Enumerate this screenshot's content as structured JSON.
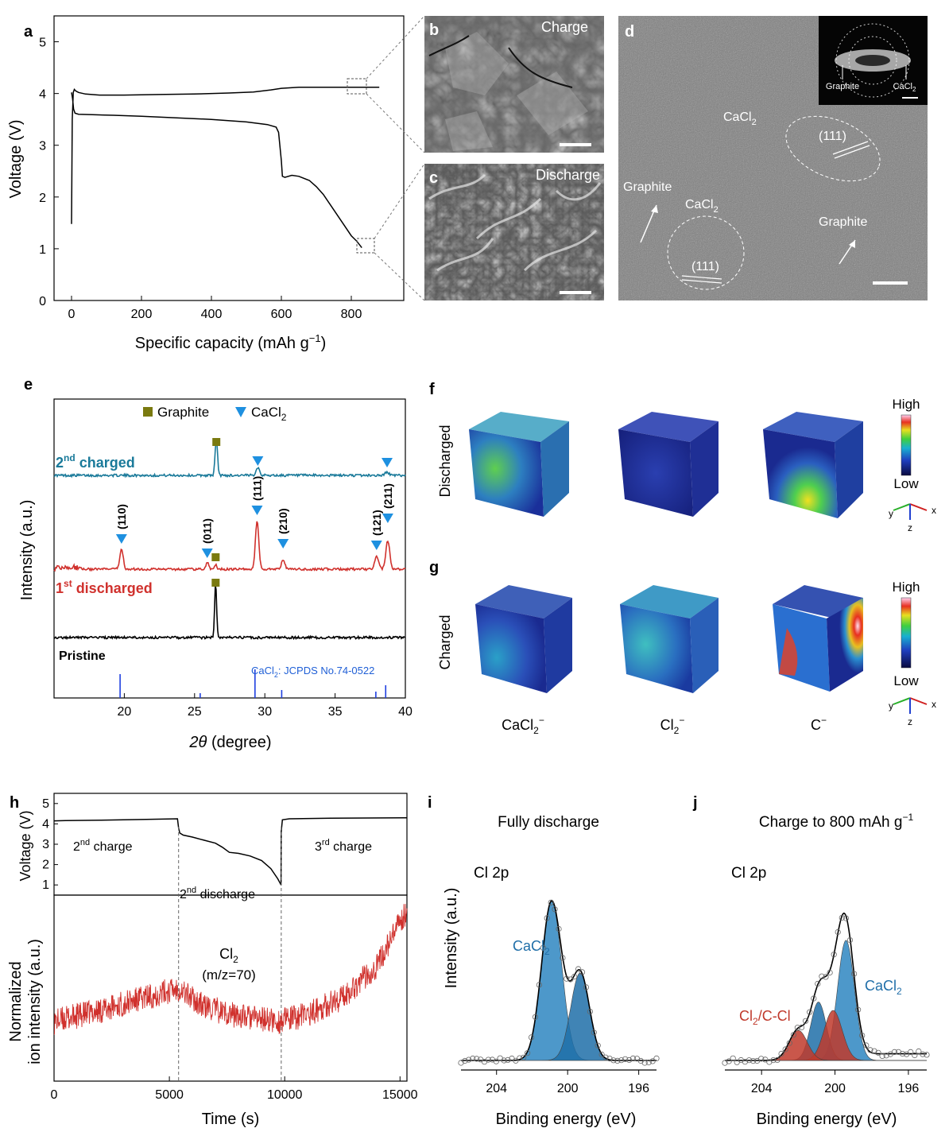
{
  "panel_labels": {
    "a": "a",
    "b": "b",
    "c": "c",
    "d": "d",
    "e": "e",
    "f": "f",
    "g": "g",
    "h": "h",
    "i": "i",
    "j": "j"
  },
  "colors": {
    "black": "#000000",
    "teal": "#1a7a9a",
    "red": "#d0312d",
    "blue": "#1f5fd6",
    "olive": "#7a7a10",
    "peakBlue": "#1e90e0",
    "xpsBlue": "#2e86c1",
    "xpsDark": "#1f6ea8",
    "xpsRed": "#c0392b"
  },
  "images": {
    "b_label": "Charge",
    "c_label": "Discharge",
    "d": {
      "cacl2_top": "CaCl",
      "cacl2_sub": "2",
      "hkl1": "(111)",
      "graphite_left": "Graphite",
      "cacl2_mid": "CaCl",
      "cacl2_mid_sub": "2",
      "hkl2": "(111)",
      "graphite_right": "Graphite",
      "saed_graphite": "Graphite",
      "saed_cacl2": "CaCl",
      "saed_cacl2_sub": "2"
    }
  },
  "tof": {
    "rows": [
      "Discharged",
      "Charged"
    ],
    "columns": [
      {
        "base": "CaCl",
        "sub": "2",
        "sup": "−"
      },
      {
        "base": "Cl",
        "sub": "2",
        "sup": "−"
      },
      {
        "base": "C",
        "sub": "",
        "sup": "−"
      }
    ],
    "scale_high": "High",
    "scale_low": "Low",
    "axes": {
      "x": "x",
      "y": "y",
      "z": "z"
    }
  },
  "chart_data": [
    {
      "id": "a",
      "type": "line",
      "xlabel_base": "Specific capacity (mAh g",
      "xlabel_sup": "−1",
      "xlabel_end": ")",
      "ylabel": "Voltage (V)",
      "xlim": [
        -50,
        950
      ],
      "ylim": [
        0,
        5.5
      ],
      "xticks": [
        "0",
        "200",
        "400",
        "600",
        "800"
      ],
      "xtick_vals": [
        0,
        200,
        400,
        600,
        800
      ],
      "yticks": [
        "0",
        "1",
        "2",
        "3",
        "4",
        "5"
      ],
      "ytick_vals": [
        0,
        1,
        2,
        3,
        4,
        5
      ],
      "series": [
        {
          "x": [
            0,
            2,
            5,
            8,
            12,
            20,
            40,
            80,
            150,
            250,
            350,
            450,
            520,
            570,
            600,
            650,
            700,
            760,
            800,
            850,
            880
          ],
          "y": [
            1.48,
            3.5,
            4.02,
            4.08,
            4.05,
            4.02,
            3.99,
            3.97,
            3.97,
            3.98,
            3.99,
            4.01,
            4.03,
            4.07,
            4.1,
            4.12,
            4.12,
            4.12,
            4.12,
            4.12,
            4.12
          ]
        },
        {
          "x": [
            0,
            3,
            6,
            10,
            20,
            60,
            120,
            200,
            300,
            400,
            500,
            560,
            585,
            592,
            600,
            603,
            610,
            630,
            650,
            680,
            700,
            720,
            740,
            760,
            780,
            800,
            815,
            830
          ],
          "y": [
            4.02,
            3.9,
            3.7,
            3.62,
            3.6,
            3.59,
            3.58,
            3.56,
            3.53,
            3.5,
            3.45,
            3.4,
            3.35,
            3.25,
            2.7,
            2.4,
            2.38,
            2.42,
            2.4,
            2.32,
            2.2,
            2.05,
            1.85,
            1.65,
            1.45,
            1.25,
            1.15,
            1.02
          ]
        }
      ]
    },
    {
      "id": "e",
      "type": "line",
      "xlabel_theta": "2θ",
      "xlabel_rest": " (degree)",
      "ylabel": "Intensity (a.u.)",
      "xlim": [
        15,
        40
      ],
      "xticks": [
        "20",
        "25",
        "30",
        "35",
        "40"
      ],
      "xtick_vals": [
        20,
        25,
        30,
        35,
        40
      ],
      "legend": [
        {
          "marker": "square",
          "label": "Graphite"
        },
        {
          "marker": "triangle",
          "label_base": "CaCl",
          "label_sub": "2"
        }
      ],
      "series": [
        {
          "name_sup": "nd",
          "name_pre": "2",
          "name_post": " charged",
          "color": "#1a7a9a",
          "baseline": 0.0,
          "peaks": [
            [
              26.55,
              46,
              0.12
            ],
            [
              29.5,
              10,
              0.18
            ],
            [
              38.7,
              4,
              0.2
            ]
          ]
        },
        {
          "name_sup": "st",
          "name_pre": "1",
          "name_post": " discharged",
          "color": "#d0312d",
          "baseline": 0.0,
          "peaks": [
            [
              19.8,
              26,
              0.17
            ],
            [
              25.9,
              8,
              0.15
            ],
            [
              26.5,
              6,
              0.12
            ],
            [
              29.45,
              60,
              0.17
            ],
            [
              31.3,
              12,
              0.17
            ],
            [
              37.95,
              16,
              0.2
            ],
            [
              38.75,
              36,
              0.2
            ]
          ]
        },
        {
          "name": "Pristine",
          "color": "#000000",
          "baseline": 0.0,
          "peaks": [
            [
              26.5,
              68,
              0.1
            ]
          ]
        }
      ],
      "reference": {
        "label_base": "CaCl",
        "label_sub": "2",
        "label_rest": ": JCPDS No.74-0522",
        "x": [
          19.7,
          25.4,
          29.3,
          31.2,
          37.9,
          38.6
        ],
        "h": [
          30,
          6,
          36,
          10,
          8,
          16
        ]
      },
      "hkl": [
        {
          "label": "(110)",
          "x": 19.8
        },
        {
          "label": "(011)",
          "x": 25.9
        },
        {
          "label": "(111)",
          "x": 29.45
        },
        {
          "label": "(210)",
          "x": 31.3
        },
        {
          "label": "(121)",
          "x": 37.95
        },
        {
          "label": "(211)",
          "x": 38.75
        }
      ]
    },
    {
      "id": "h",
      "type": "line",
      "ylabel_top": "Voltage (V)",
      "ylabel_bot_1": "Normalized",
      "ylabel_bot_2": "ion intensity (a.u.)",
      "xlabel": "Time (s)",
      "xlim": [
        0,
        15300
      ],
      "xticks": [
        "0",
        "5000",
        "10000",
        "15000"
      ],
      "xtick_vals": [
        0,
        5000,
        10000,
        15000
      ],
      "yticks": [
        "1",
        "2",
        "3",
        "4",
        "5"
      ],
      "ytick_vals": [
        1,
        2,
        3,
        4,
        5
      ],
      "ylim": [
        0.5,
        5.5
      ],
      "annotations": [
        {
          "pre": "2",
          "sup": "nd",
          "post": " charge"
        },
        {
          "pre": "2",
          "sup": "nd",
          "post": " discharge"
        },
        {
          "pre": "3",
          "sup": "rd",
          "post": " charge"
        }
      ],
      "species": {
        "base": "Cl",
        "sub": "2",
        "line2": "(m/z=70)"
      },
      "dividers": [
        5400,
        9850
      ],
      "voltage": {
        "x": [
          0,
          500,
          2000,
          4000,
          5350,
          5400,
          5450,
          5600,
          6000,
          6500,
          7000,
          7300,
          7600,
          8000,
          8500,
          9000,
          9400,
          9700,
          9840,
          9850,
          9900,
          10200,
          12000,
          15300
        ],
        "y": [
          4.15,
          4.16,
          4.18,
          4.22,
          4.25,
          3.8,
          3.55,
          3.45,
          3.35,
          3.2,
          3.05,
          2.85,
          2.6,
          2.55,
          2.42,
          2.2,
          1.8,
          1.3,
          1.0,
          3.6,
          4.2,
          4.25,
          4.28,
          4.3
        ]
      },
      "cl2_trend": {
        "x": [
          0,
          2000,
          4000,
          5400,
          6500,
          8000,
          9800,
          11000,
          12500,
          14000,
          15300
        ],
        "y": [
          0.32,
          0.38,
          0.45,
          0.5,
          0.4,
          0.35,
          0.32,
          0.36,
          0.45,
          0.62,
          0.92
        ]
      }
    },
    {
      "id": "i",
      "type": "area",
      "title": "Fully discharge",
      "region": "Cl 2p",
      "ylabel": "Intensity (a.u.)",
      "xlabel": "Binding energy (eV)",
      "xlim": [
        206,
        195
      ],
      "xticks": [
        "204",
        "200",
        "196"
      ],
      "xtick_vals": [
        204,
        200,
        196
      ],
      "component_label_base": "CaCl",
      "component_label_sub": "2",
      "components": [
        {
          "center": 200.9,
          "height": 1.0,
          "width": 0.8,
          "color": "#2e86c1"
        },
        {
          "center": 199.3,
          "height": 0.55,
          "width": 0.75,
          "color": "#1f6ea8"
        }
      ]
    },
    {
      "id": "j",
      "type": "area",
      "title_base": "Charge to 800 mAh g",
      "title_sup": "−1",
      "region": "Cl 2p",
      "xlabel": "Binding energy (eV)",
      "xlim": [
        206,
        195
      ],
      "xticks": [
        "204",
        "200",
        "196"
      ],
      "xtick_vals": [
        204,
        200,
        196
      ],
      "label_cacl2_base": "CaCl",
      "label_cacl2_sub": "2",
      "label_cl2_base": "Cl",
      "label_cl2_sub": "2",
      "label_cl2_rest": "/C-Cl",
      "components": [
        {
          "center": 199.4,
          "height": 0.72,
          "width": 0.65,
          "color": "#2e86c1"
        },
        {
          "center": 200.9,
          "height": 0.35,
          "width": 0.6,
          "color": "#1f6ea8"
        },
        {
          "center": 200.1,
          "height": 0.3,
          "width": 0.7,
          "color": "#c0392b"
        },
        {
          "center": 202.0,
          "height": 0.18,
          "width": 0.7,
          "color": "#c0392b"
        }
      ]
    }
  ]
}
